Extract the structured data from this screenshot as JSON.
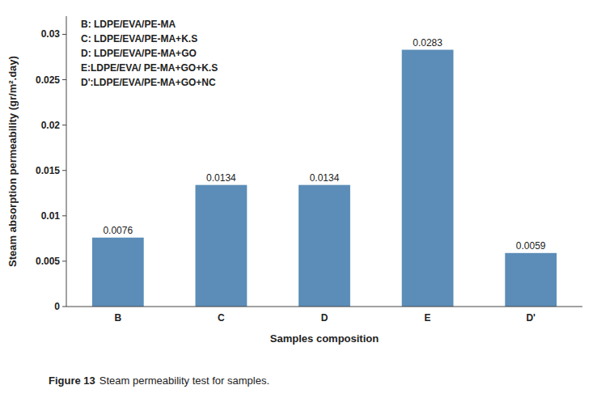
{
  "chart_data": {
    "type": "bar",
    "categories": [
      "B",
      "C",
      "D",
      "E",
      "D'"
    ],
    "values": [
      0.0076,
      0.0134,
      0.0134,
      0.0283,
      0.0059
    ],
    "color": "#5B8DB8",
    "xlabel": "Samples composition",
    "ylabel": "Steam absorption permeability (gr/m².day)",
    "ylim": [
      0,
      0.032
    ],
    "yticks": [
      0,
      0.005,
      0.01,
      0.015,
      0.02,
      0.025,
      0.03
    ],
    "data_labels": true,
    "grid": false,
    "annotations": [
      "B: LDPE/EVA/PE-MA",
      "C: LDPE/EVA/PE-MA+K.S",
      "D: LDPE/EVA/PE-MA+GO",
      "E:LDPE/EVA/ PE-MA+GO+K.S",
      "D':LDPE/EVA/PE-MA+GO+NC"
    ],
    "caption": {
      "label": "Figure 13",
      "text": "Steam permeability test for samples."
    }
  }
}
